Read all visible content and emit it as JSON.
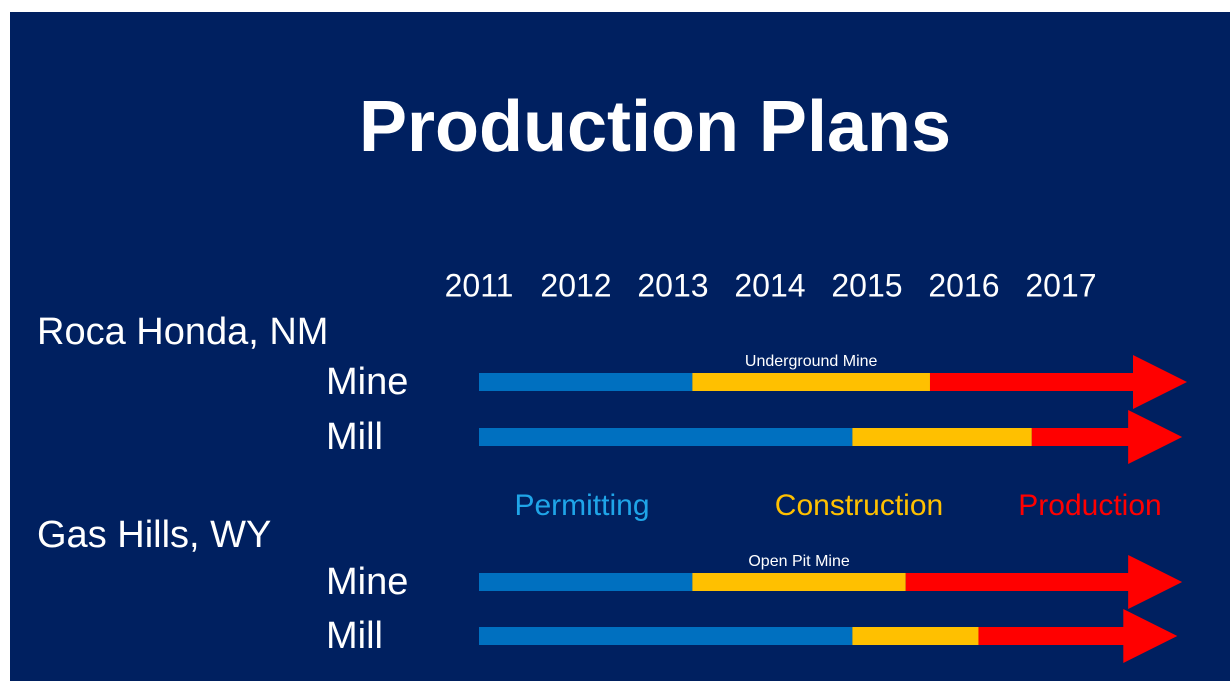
{
  "chart_data": {
    "type": "timeline",
    "title": "Production Plans",
    "xlim": [
      2011,
      2018.3
    ],
    "xticks": [
      2011,
      2012,
      2013,
      2014,
      2015,
      2016,
      2017
    ],
    "phases": [
      {
        "name": "Permitting",
        "color": "#0070c0",
        "label_color": "#1fa5e8"
      },
      {
        "name": "Construction",
        "color": "#ffc000",
        "label_color": "#ffc000"
      },
      {
        "name": "Production",
        "color": "#ff0000",
        "label_color": "#ff0000"
      }
    ],
    "groups": [
      {
        "name": "Roca Honda, NM",
        "rows": [
          {
            "name": "Mine",
            "label": "Underground Mine",
            "values": [
              2011,
              2013.2,
              2015.65,
              2018.3
            ]
          },
          {
            "name": "Mill",
            "values": [
              2011,
              2014.85,
              2016.7,
              2018.25
            ]
          }
        ]
      },
      {
        "name": "Gas Hills, WY",
        "rows": [
          {
            "name": "Mine",
            "label": "Open Pit Mine",
            "values": [
              2011,
              2013.2,
              2015.4,
              2018.25
            ]
          },
          {
            "name": "Mill",
            "values": [
              2011,
              2014.85,
              2016.15,
              2018.2
            ]
          }
        ]
      }
    ]
  }
}
